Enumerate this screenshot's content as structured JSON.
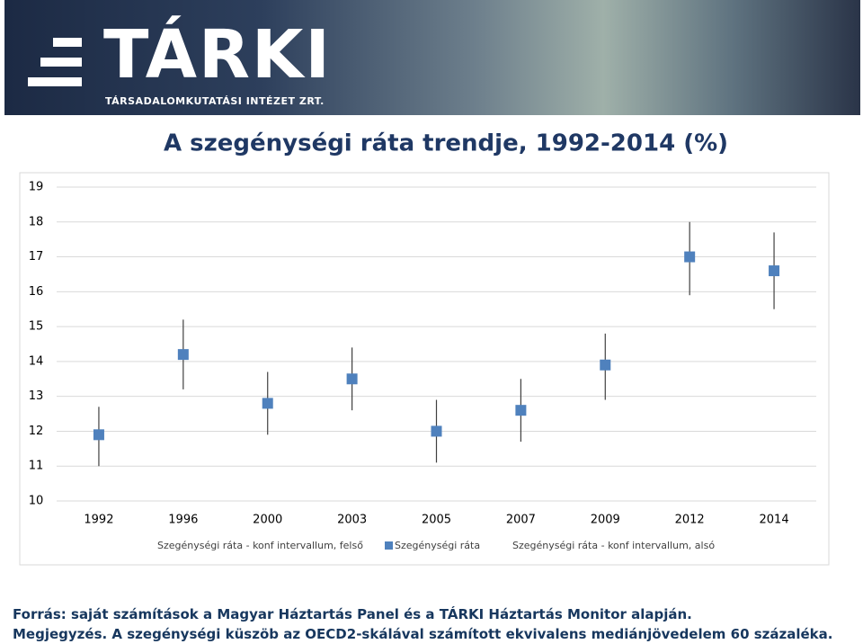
{
  "header": {
    "logo": "TÁRKI",
    "subtitle": "TÁRSADALOMKUTATÁSI INTÉZET ZRT."
  },
  "chart_data": {
    "type": "errorbar",
    "title": "A szegénységi ráta trendje, 1992-2014 (%)",
    "categories": [
      "1992",
      "1996",
      "2000",
      "2003",
      "2005",
      "2007",
      "2009",
      "2012",
      "2014"
    ],
    "series": [
      {
        "name": "Szegénységi ráta - konf intervallum, felső",
        "color": "#404040",
        "values": [
          12.7,
          15.2,
          13.7,
          14.4,
          12.9,
          13.5,
          14.8,
          18.0,
          17.7
        ]
      },
      {
        "name": "Szegénységi ráta",
        "color": "#4f81bd",
        "values": [
          11.9,
          14.2,
          12.8,
          13.5,
          12.0,
          12.6,
          13.9,
          17.0,
          16.6
        ]
      },
      {
        "name": "Szegénységi ráta - konf intervallum, alsó",
        "color": "#404040",
        "values": [
          11.0,
          13.2,
          11.9,
          12.6,
          11.1,
          11.7,
          12.9,
          15.9,
          15.5
        ]
      }
    ],
    "ylim": [
      10,
      19
    ],
    "yticks": [
      10,
      11,
      12,
      13,
      14,
      15,
      16,
      17,
      18,
      19
    ],
    "grid": true,
    "legend": "bottom"
  },
  "footer": {
    "source": "Forrás: saját számítások a Magyar Háztartás Panel és a TÁRKI Háztartás Monitor alapján.",
    "note": "Megjegyzés. A szegénységi küszöb az OECD2-skálával számított ekvivalens mediánjövedelem 60 százaléka."
  }
}
